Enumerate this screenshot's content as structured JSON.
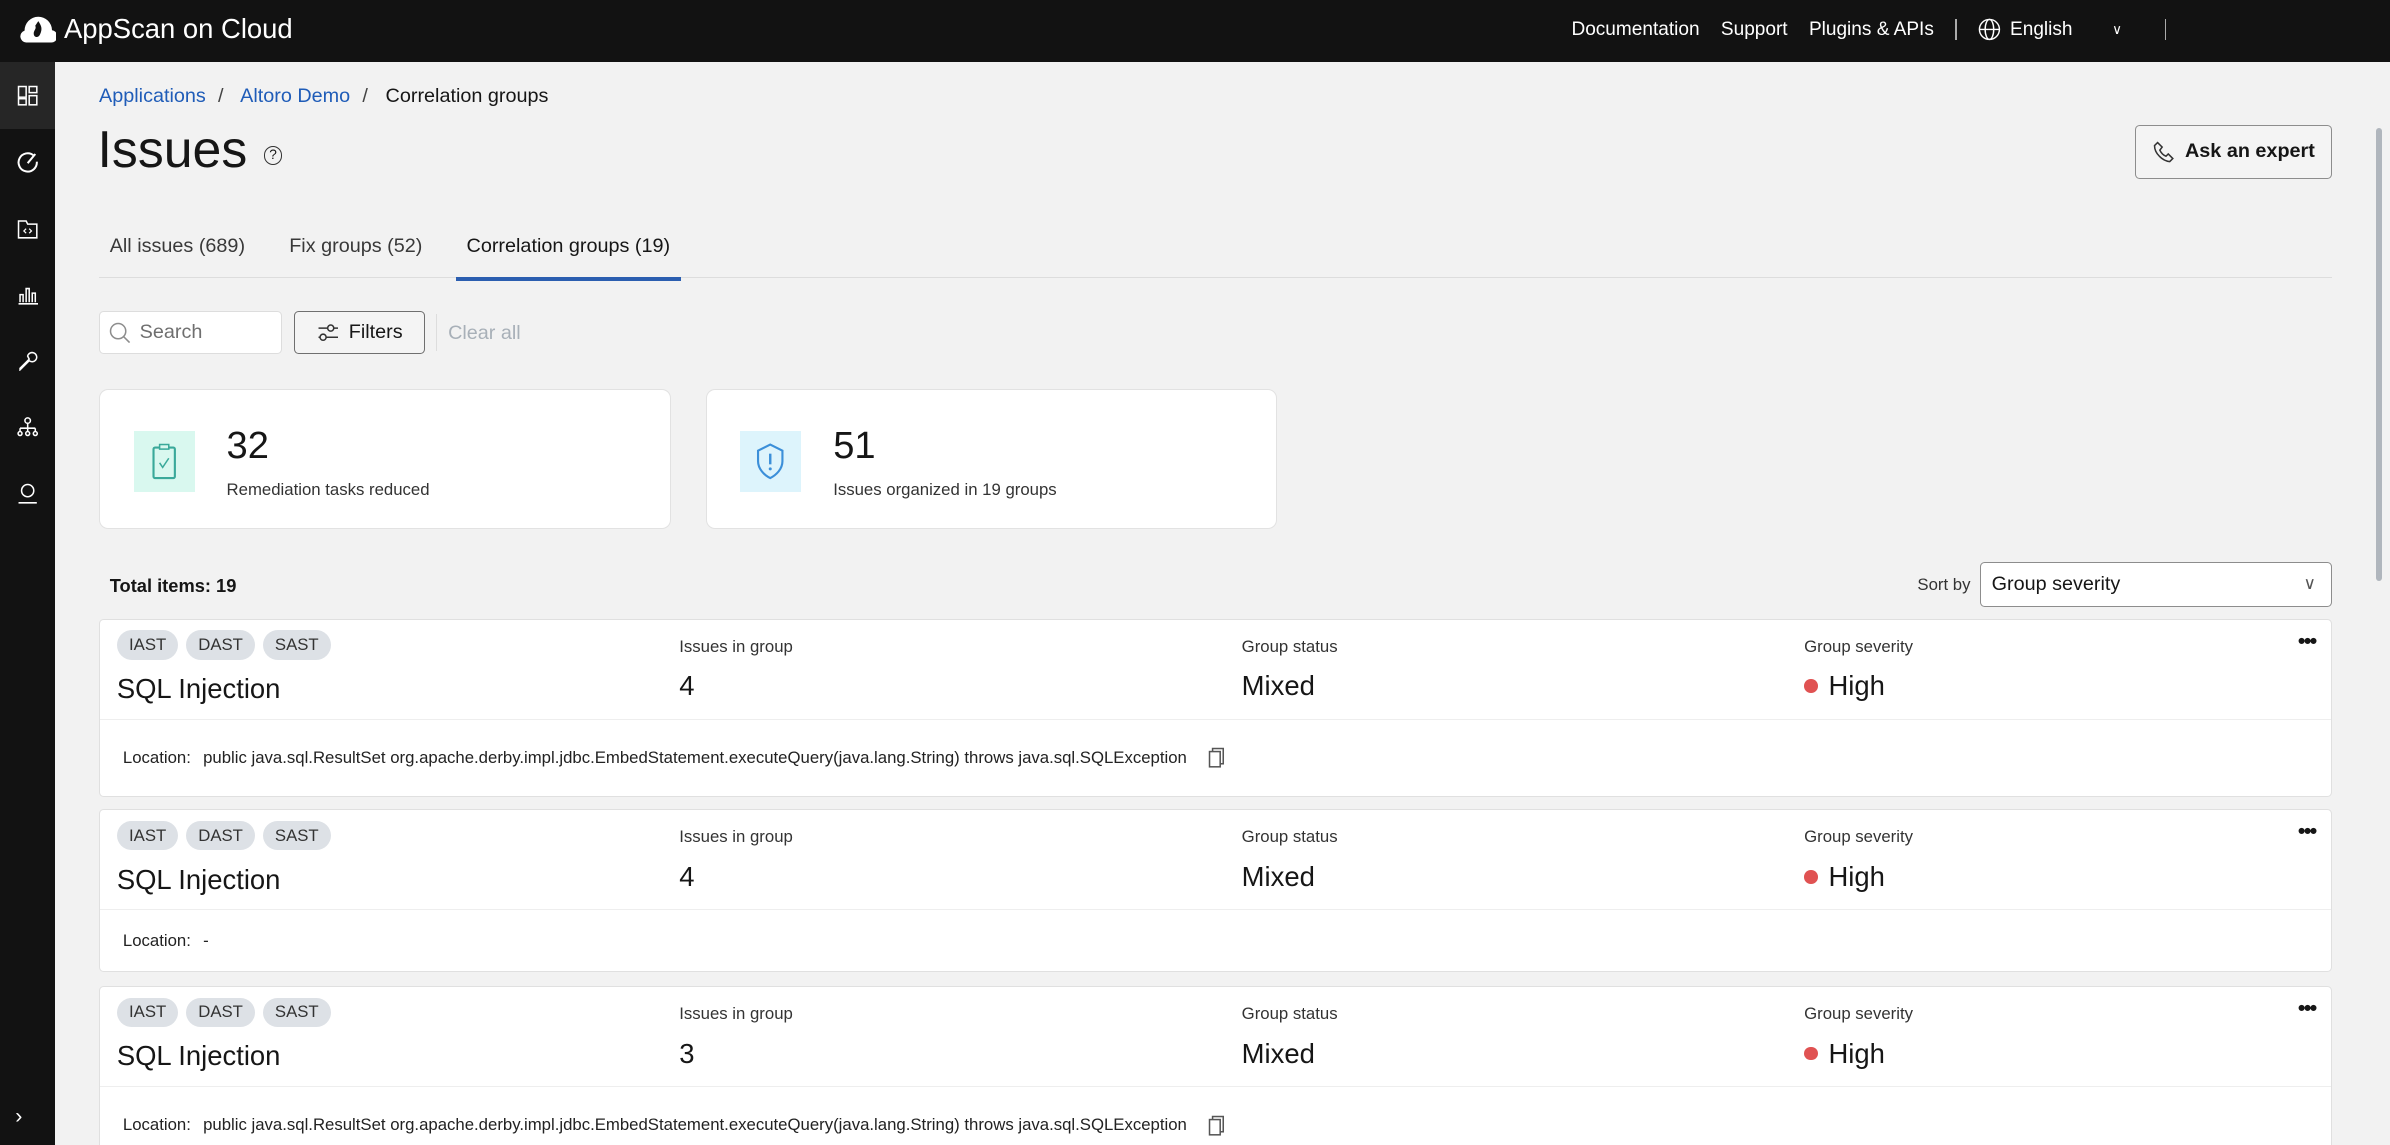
{
  "topbar": {
    "brand": "AppScan on Cloud",
    "nav": [
      "Documentation",
      "Support",
      "Plugins & APIs"
    ],
    "language": "English"
  },
  "sidebar": {
    "icons": [
      "dashboard-icon",
      "scan-icon",
      "code-folder-icon",
      "reports-icon",
      "wrench-icon",
      "org-hierarchy-icon",
      "user-icon"
    ],
    "expand": "chevron-right-icon"
  },
  "breadcrumb": [
    "Applications",
    "Altoro Demo",
    "Correlation groups"
  ],
  "page": {
    "title": "Issues",
    "ask_expert": "Ask an expert"
  },
  "tabs": [
    {
      "label": "All issues (689)"
    },
    {
      "label": "Fix groups (52)"
    },
    {
      "label": "Correlation groups (19)",
      "active": true
    }
  ],
  "toolbar": {
    "search_placeholder": "Search",
    "filters": "Filters",
    "clear_all": "Clear all"
  },
  "stats": [
    {
      "value": "32",
      "label": "Remediation tasks reduced",
      "icon": "clipboard-check-icon",
      "color": "#d9f8ef"
    },
    {
      "value": "51",
      "label": "Issues organized in 19 groups",
      "icon": "shield-alert-icon",
      "color": "#ddf4fc"
    }
  ],
  "list": {
    "total": "Total items: 19",
    "sort_label": "Sort by",
    "sort_value": "Group severity",
    "col_labels": {
      "issues": "Issues in group",
      "status": "Group status",
      "severity": "Group severity"
    },
    "location_label": "Location:",
    "severity_color": "#e05252",
    "items": [
      {
        "tags": [
          "IAST",
          "DAST",
          "SAST"
        ],
        "name": "SQL Injection",
        "issues": "4",
        "status": "Mixed",
        "severity": "High",
        "location": "public java.sql.ResultSet org.apache.derby.impl.jdbc.EmbedStatement.executeQuery(java.lang.String) throws java.sql.SQLException"
      },
      {
        "tags": [
          "IAST",
          "DAST",
          "SAST"
        ],
        "name": "SQL Injection",
        "issues": "4",
        "status": "Mixed",
        "severity": "High",
        "location": "-"
      },
      {
        "tags": [
          "IAST",
          "DAST",
          "SAST"
        ],
        "name": "SQL Injection",
        "issues": "3",
        "status": "Mixed",
        "severity": "High",
        "location": "public java.sql.ResultSet org.apache.derby.impl.jdbc.EmbedStatement.executeQuery(java.lang.String) throws java.sql.SQLException"
      }
    ]
  }
}
